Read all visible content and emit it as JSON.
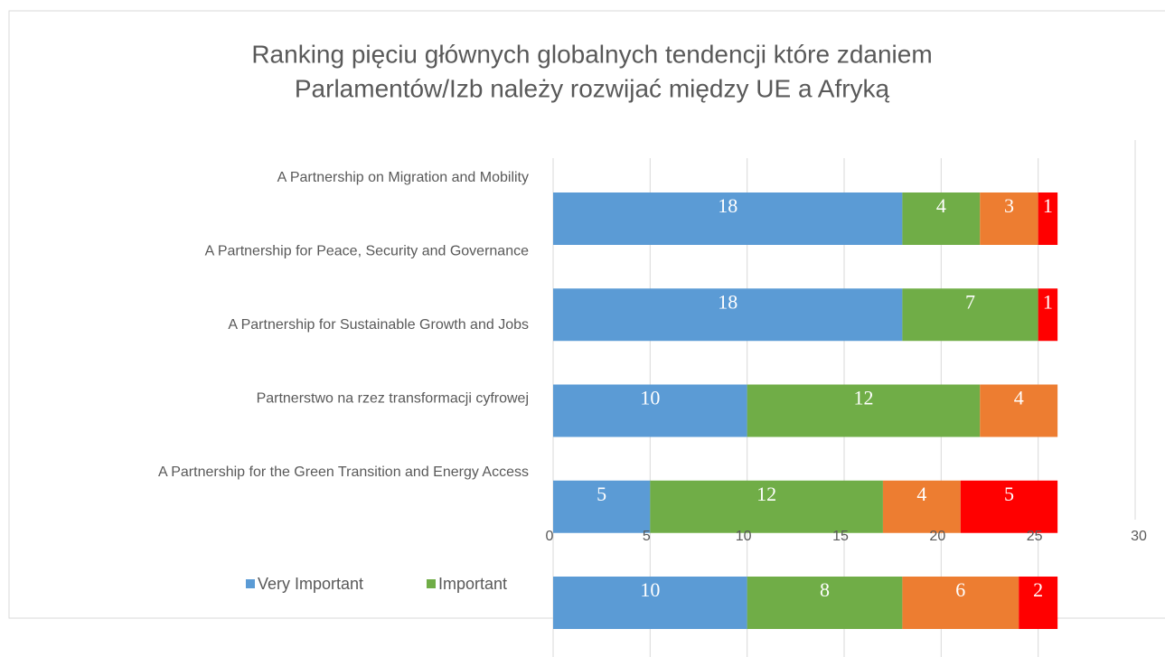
{
  "chart_data": {
    "type": "bar",
    "orientation": "horizontal",
    "stacked": true,
    "title": [
      "Ranking pięciu głównych globalnych tendencji które zdaniem",
      "Parlamentów/Izb należy rozwijać między UE a Afryką"
    ],
    "categories": [
      "A Partnership on Migration and Mobility",
      "A Partnership for Peace, Security and Governance",
      "A Partnership for Sustainable Growth and Jobs",
      "Partnerstwo na rzez transformacji cyfrowej",
      "A Partnership for the Green Transition and Energy Access"
    ],
    "series": [
      {
        "name": "Very Important",
        "color": "#5b9bd5",
        "values": [
          18,
          18,
          10,
          5,
          10
        ]
      },
      {
        "name": "Important",
        "color": "#70ad47",
        "values": [
          4,
          7,
          12,
          12,
          8
        ]
      },
      {
        "color": "#ed7d31",
        "values": [
          3,
          null,
          4,
          4,
          6
        ]
      },
      {
        "color": "#ff0000",
        "values": [
          1,
          1,
          null,
          5,
          2
        ]
      }
    ],
    "xlim": [
      0,
      30
    ],
    "xticks": [
      0,
      5,
      10,
      15,
      20,
      25,
      30
    ],
    "grid": true,
    "legend": "bottom"
  }
}
